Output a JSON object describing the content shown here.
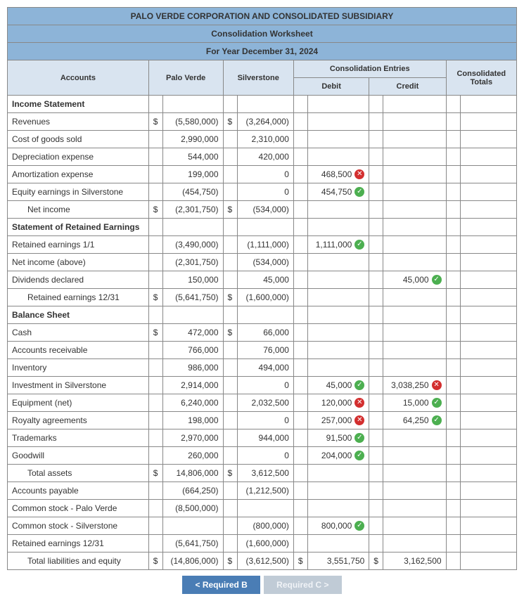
{
  "title1": "PALO VERDE CORPORATION AND CONSOLIDATED SUBSIDIARY",
  "title2": "Consolidation Worksheet",
  "title3": "For Year December 31, 2024",
  "header": {
    "accounts": "Accounts",
    "palo": "Palo Verde",
    "silver": "Silverstone",
    "consol_entries": "Consolidation Entries",
    "debit": "Debit",
    "credit": "Credit",
    "totals": "Consolidated Totals"
  },
  "sections": {
    "income": "Income Statement",
    "retained": "Statement of Retained Earnings",
    "balance": "Balance Sheet"
  },
  "currency": "$",
  "rows": {
    "revenues": {
      "label": "Revenues",
      "palo": "(5,580,000)",
      "silver": "(3,264,000)",
      "palo_cur": true,
      "silver_cur": true
    },
    "cogs": {
      "label": "Cost of goods sold",
      "palo": "2,990,000",
      "silver": "2,310,000"
    },
    "dep": {
      "label": "Depreciation expense",
      "palo": "544,000",
      "silver": "420,000"
    },
    "amort": {
      "label": "Amortization expense",
      "palo": "199,000",
      "silver": "0",
      "debit": "468,500",
      "debit_status": "err"
    },
    "eqearn": {
      "label": "Equity earnings in Silverstone",
      "palo": "(454,750)",
      "silver": "0",
      "debit": "454,750",
      "debit_status": "ok"
    },
    "netinc": {
      "label": "Net income",
      "indent": 2,
      "palo": "(2,301,750)",
      "silver": "(534,000)",
      "palo_cur": true,
      "silver_cur": true
    },
    "re11": {
      "label": "Retained earnings 1/1",
      "palo": "(3,490,000)",
      "silver": "(1,111,000)",
      "debit": "1,111,000",
      "debit_status": "ok"
    },
    "netinc2": {
      "label": "Net income (above)",
      "palo": "(2,301,750)",
      "silver": "(534,000)"
    },
    "div": {
      "label": "Dividends declared",
      "palo": "150,000",
      "silver": "45,000",
      "credit": "45,000",
      "credit_status": "ok"
    },
    "re1231": {
      "label": "Retained earnings 12/31",
      "indent": 2,
      "palo": "(5,641,750)",
      "silver": "(1,600,000)",
      "palo_cur": true,
      "silver_cur": true
    },
    "cash": {
      "label": "Cash",
      "palo": "472,000",
      "silver": "66,000",
      "palo_cur": true,
      "silver_cur": true
    },
    "ar": {
      "label": "Accounts receivable",
      "palo": "766,000",
      "silver": "76,000"
    },
    "inv": {
      "label": "Inventory",
      "palo": "986,000",
      "silver": "494,000"
    },
    "invsilver": {
      "label": "Investment in Silverstone",
      "palo": "2,914,000",
      "silver": "0",
      "debit": "45,000",
      "debit_status": "ok",
      "credit": "3,038,250",
      "credit_status": "err"
    },
    "equip": {
      "label": "Equipment (net)",
      "palo": "6,240,000",
      "silver": "2,032,500",
      "debit": "120,000",
      "debit_status": "err",
      "credit": "15,000",
      "credit_status": "ok"
    },
    "royalty": {
      "label": "Royalty agreements",
      "palo": "198,000",
      "silver": "0",
      "debit": "257,000",
      "debit_status": "err",
      "credit": "64,250",
      "credit_status": "ok"
    },
    "tm": {
      "label": "Trademarks",
      "palo": "2,970,000",
      "silver": "944,000",
      "debit": "91,500",
      "debit_status": "ok"
    },
    "gw": {
      "label": "Goodwill",
      "palo": "260,000",
      "silver": "0",
      "debit": "204,000",
      "debit_status": "ok"
    },
    "tassets": {
      "label": "Total assets",
      "indent": 2,
      "palo": "14,806,000",
      "silver": "3,612,500",
      "palo_cur": true,
      "silver_cur": true
    },
    "ap": {
      "label": "Accounts payable",
      "palo": "(664,250)",
      "silver": "(1,212,500)"
    },
    "cspalo": {
      "label": "Common stock - Palo Verde",
      "palo": "(8,500,000)"
    },
    "cssilver": {
      "label": "Common stock - Silverstone",
      "silver": "(800,000)",
      "debit": "800,000",
      "debit_status": "ok"
    },
    "re1231b": {
      "label": "Retained earnings 12/31",
      "palo": "(5,641,750)",
      "silver": "(1,600,000)"
    },
    "tliab": {
      "label": "Total liabilities and equity",
      "indent": 2,
      "palo": "(14,806,000)",
      "silver": "(3,612,500)",
      "debit": "3,551,750",
      "credit": "3,162,500",
      "palo_cur": true,
      "silver_cur": true,
      "debit_cur": true,
      "credit_cur": true
    }
  },
  "nav": {
    "prev": "Required B",
    "next": "Required C",
    "lt": "<",
    "gt": ">",
    "nbsp": " "
  },
  "glyphs": {
    "ok": "✓",
    "err": "✕"
  }
}
